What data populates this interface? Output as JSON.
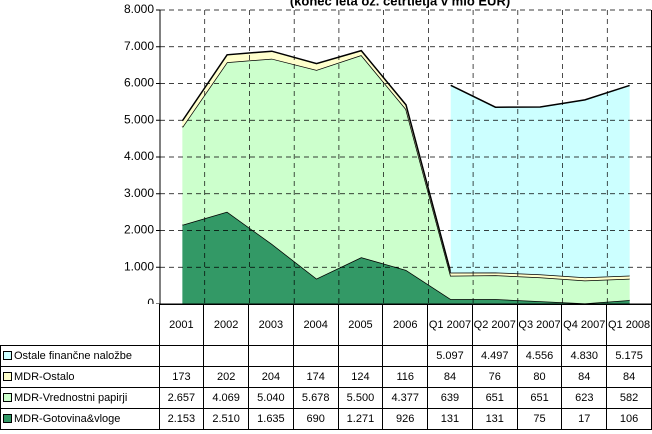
{
  "chart_data": {
    "type": "stacked-area",
    "title": "(konec leta oz. četrtletja v mio EUR)",
    "categories": [
      "2001",
      "2002",
      "2003",
      "2004",
      "2005",
      "2006",
      "Q1 2007",
      "Q2 2007",
      "Q3 2007",
      "Q4 2007",
      "Q1 2008"
    ],
    "series": [
      {
        "name": "MDR-Gotovina&vloge",
        "color": "#339966",
        "values": [
          2153,
          2510,
          1635,
          690,
          1271,
          926,
          131,
          131,
          75,
          17,
          106
        ],
        "value_labels": [
          "2.153",
          "2.510",
          "1.635",
          "690",
          "1.271",
          "926",
          "131",
          "131",
          "75",
          "17",
          "106"
        ]
      },
      {
        "name": "MDR-Vrednostni papirji",
        "color": "#ccffcc",
        "values": [
          2657,
          4069,
          5040,
          5678,
          5500,
          4377,
          639,
          651,
          651,
          623,
          582
        ],
        "value_labels": [
          "2.657",
          "4.069",
          "5.040",
          "5.678",
          "5.500",
          "4.377",
          "639",
          "651",
          "651",
          "623",
          "582"
        ]
      },
      {
        "name": "MDR-Ostalo",
        "color": "#ffffcc",
        "values": [
          173,
          202,
          204,
          174,
          124,
          116,
          84,
          76,
          80,
          84,
          84
        ],
        "value_labels": [
          "173",
          "202",
          "204",
          "174",
          "124",
          "116",
          "84",
          "76",
          "80",
          "84",
          "84"
        ]
      },
      {
        "name": "Ostale finančne naložbe",
        "color": "#ccffff",
        "values": [
          null,
          null,
          null,
          null,
          null,
          null,
          5097,
          4497,
          4556,
          4830,
          5175
        ],
        "value_labels": [
          null,
          null,
          null,
          null,
          null,
          null,
          "5.097",
          "4.497",
          "4.556",
          "4.830",
          "5.175"
        ]
      }
    ],
    "ylim": [
      0,
      8000
    ],
    "yticks": [
      {
        "value": 0,
        "label": "0"
      },
      {
        "value": 1000,
        "label": "1.000"
      },
      {
        "value": 2000,
        "label": "2.000"
      },
      {
        "value": 3000,
        "label": "3.000"
      },
      {
        "value": 4000,
        "label": "4.000"
      },
      {
        "value": 5000,
        "label": "5.000"
      },
      {
        "value": 6000,
        "label": "6.000"
      },
      {
        "value": 7000,
        "label": "7.000"
      },
      {
        "value": 8000,
        "label": "8.000"
      }
    ],
    "grid": true
  }
}
